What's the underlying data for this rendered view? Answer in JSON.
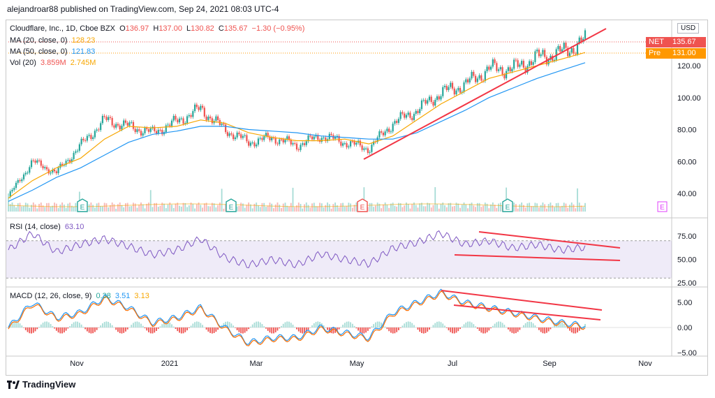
{
  "header": {
    "publisher_text": "alejandroar88 published on TradingView.com, Sep 24, 2021 08:03 UTC-4"
  },
  "symbol_legend": {
    "title": "Cloudflare, Inc., 1D, Cboe BZX",
    "open_label": "O",
    "open": "136.97",
    "high_label": "H",
    "high": "137.00",
    "low_label": "L",
    "low": "130.82",
    "close_label": "C",
    "close": "135.67",
    "change": "−1.30 (−0.95%)"
  },
  "ma20_legend": {
    "label": "MA (20, close, 0)",
    "value": "128.23"
  },
  "ma50_legend": {
    "label": "MA (50, close, 0)",
    "value": "121.83"
  },
  "vol_legend": {
    "label": "Vol (20)",
    "value1": "3.859M",
    "value2": "2.745M"
  },
  "rsi_legend": {
    "label": "RSI (14, close)",
    "value": "63.10"
  },
  "macd_legend": {
    "label": "MACD (12, 26, close, 9)",
    "value1": "0.38",
    "value2": "3.51",
    "value3": "3.13"
  },
  "price_scale": {
    "currency": "USD",
    "ticks": [
      "120.00",
      "100.00",
      "80.00",
      "60.00",
      "40.00"
    ]
  },
  "rsi_scale": {
    "ticks": [
      "75.00",
      "50.00",
      "25.00"
    ]
  },
  "macd_scale": {
    "ticks": [
      "5.00",
      "0.00",
      "−5.00"
    ]
  },
  "badges": {
    "net_label": "NET",
    "net_value": "135.67",
    "pre_label": "Pre",
    "pre_value": "131.00"
  },
  "time_axis": [
    "Nov",
    "2021",
    "Mar",
    "May",
    "Jul",
    "Sep",
    "Nov"
  ],
  "earnings_marker": "E",
  "footer": {
    "brand": "TradingView"
  },
  "colors": {
    "up": "#26a69a",
    "down": "#ef5350",
    "ma20": "#f7a600",
    "ma50": "#2196f3",
    "rsi": "#7e57c2",
    "trend": "#f23645"
  },
  "chart_data": {
    "type": "line",
    "title": "Cloudflare, Inc., 1D, Cboe BZX",
    "x": [
      "2020-09-28",
      "2020-10-19",
      "2020-11-02",
      "2020-11-16",
      "2020-12-01",
      "2020-12-15",
      "2021-01-04",
      "2021-01-19",
      "2021-02-01",
      "2021-02-16",
      "2021-03-01",
      "2021-03-15",
      "2021-04-01",
      "2021-04-15",
      "2021-05-03",
      "2021-05-17",
      "2021-06-01",
      "2021-06-15",
      "2021-07-01",
      "2021-07-15",
      "2021-08-02",
      "2021-08-16",
      "2021-09-01",
      "2021-09-15",
      "2021-09-24"
    ],
    "series": [
      {
        "name": "Cloudflare, Inc.",
        "values": [
          38,
          60,
          53,
          70,
          86,
          82,
          78,
          85,
          93,
          80,
          72,
          75,
          70,
          76,
          72,
          68,
          84,
          92,
          103,
          108,
          118,
          118,
          125,
          128,
          135.67
        ]
      },
      {
        "name": "MA (20, close, 0)",
        "values": [
          37,
          48,
          56,
          62,
          74,
          82,
          81,
          82,
          86,
          84,
          78,
          75,
          73,
          73,
          74,
          71,
          76,
          86,
          96,
          104,
          112,
          116,
          120,
          124,
          128.23
        ]
      },
      {
        "name": "MA (50, close, 0)",
        "values": [
          35,
          42,
          50,
          56,
          64,
          72,
          77,
          79,
          82,
          82,
          80,
          79,
          78,
          76,
          75,
          74,
          74,
          78,
          85,
          92,
          100,
          106,
          112,
          117,
          121.83
        ]
      }
    ],
    "rsi": [
      60,
      78,
      58,
      66,
      72,
      64,
      55,
      60,
      72,
      52,
      44,
      50,
      44,
      56,
      50,
      45,
      62,
      68,
      78,
      66,
      70,
      62,
      66,
      60,
      63.1
    ],
    "macd": [
      0,
      5,
      2,
      3,
      6,
      4,
      1,
      2,
      4,
      0,
      -3,
      -2,
      -2,
      0,
      -1,
      -2,
      3,
      5,
      7,
      5,
      4,
      3,
      2,
      1,
      0.38
    ],
    "ylim": [
      30,
      140
    ]
  }
}
